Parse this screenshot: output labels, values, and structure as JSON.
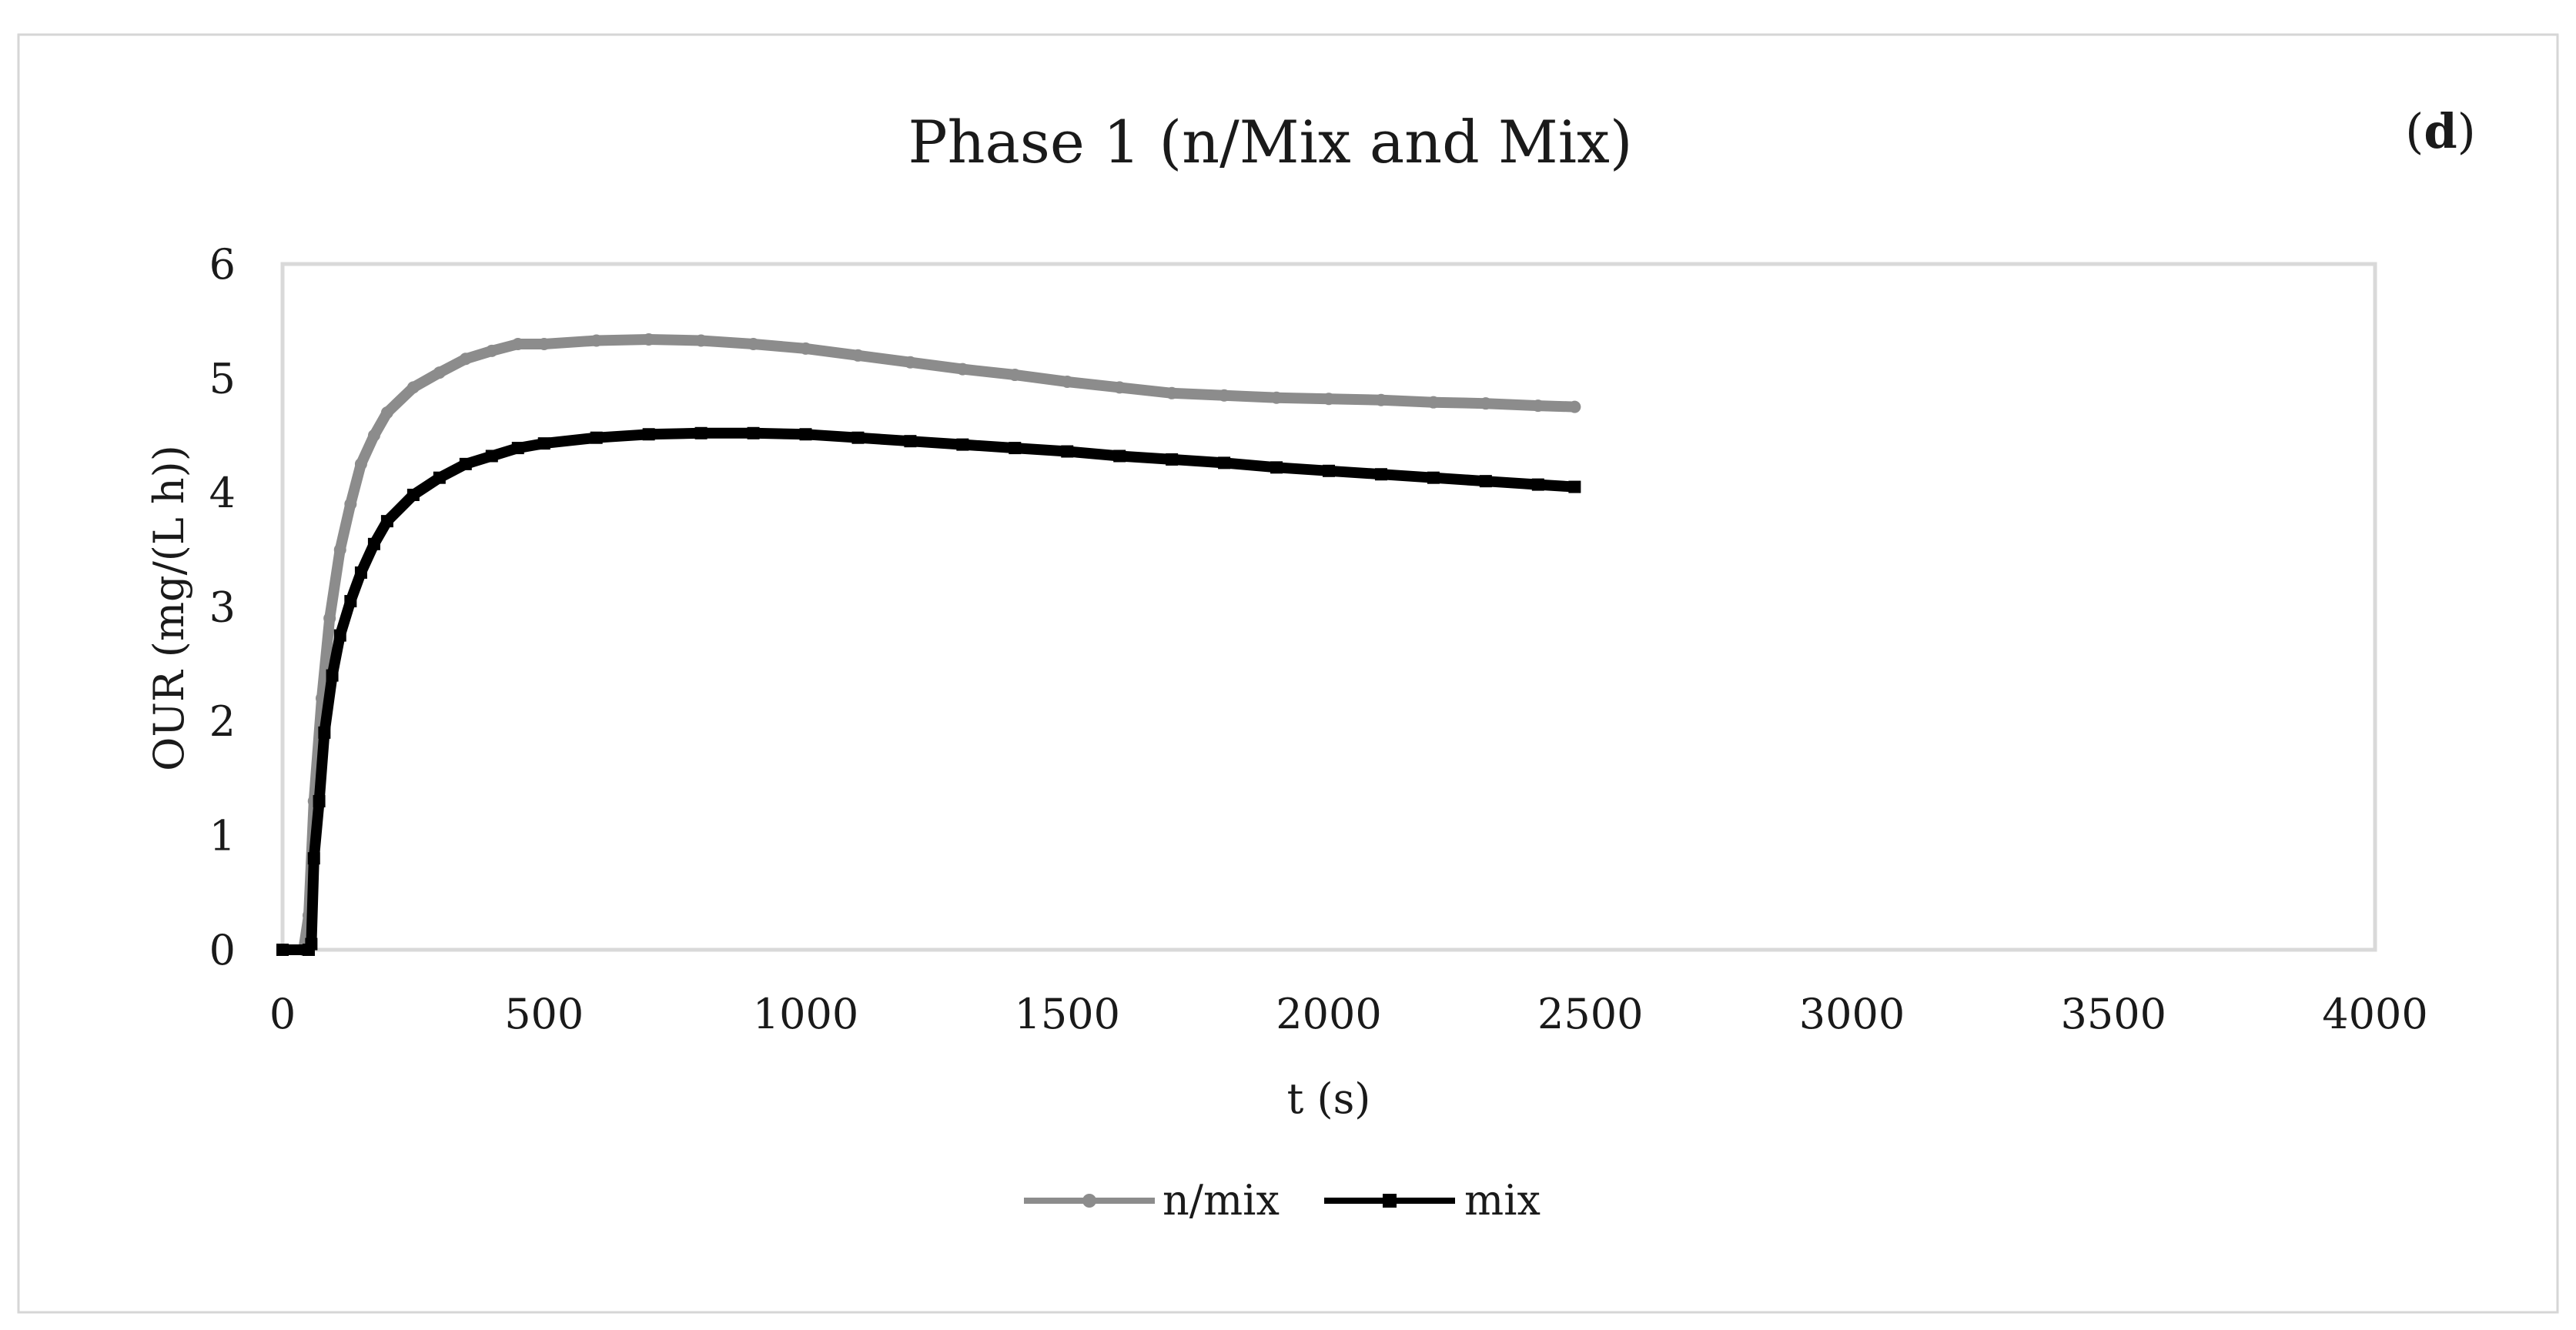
{
  "panel_label": "d",
  "chart_data": {
    "type": "line",
    "title": "Phase 1 (n/Mix and Mix)",
    "xlabel": "t (s)",
    "ylabel": "OUR (mg/(L h))",
    "xlim": [
      0,
      4000
    ],
    "ylim": [
      0,
      6
    ],
    "xticks": [
      "0",
      "500",
      "1000",
      "1500",
      "2000",
      "2500",
      "3000",
      "3500",
      "4000"
    ],
    "yticks": [
      "0",
      "1",
      "2",
      "3",
      "4",
      "5",
      "6"
    ],
    "grid": false,
    "legend_position": "bottom-center",
    "series": [
      {
        "name": "n/mix",
        "color": "#8c8c8c",
        "marker": "circle",
        "x": [
          0,
          40,
          50,
          60,
          75,
          90,
          110,
          130,
          150,
          175,
          200,
          250,
          300,
          350,
          400,
          450,
          500,
          600,
          700,
          800,
          900,
          1000,
          1100,
          1200,
          1300,
          1400,
          1500,
          1600,
          1700,
          1800,
          1900,
          2000,
          2100,
          2200,
          2300,
          2400,
          2470
        ],
        "y": [
          0,
          0,
          0.3,
          1.3,
          2.2,
          2.9,
          3.5,
          3.9,
          4.25,
          4.5,
          4.7,
          4.92,
          5.05,
          5.17,
          5.24,
          5.3,
          5.3,
          5.33,
          5.34,
          5.33,
          5.3,
          5.26,
          5.2,
          5.14,
          5.08,
          5.03,
          4.97,
          4.92,
          4.87,
          4.85,
          4.83,
          4.82,
          4.81,
          4.79,
          4.78,
          4.76,
          4.75
        ]
      },
      {
        "name": "mix",
        "color": "#000000",
        "marker": "square",
        "x": [
          0,
          50,
          55,
          60,
          70,
          80,
          95,
          110,
          130,
          150,
          175,
          200,
          250,
          300,
          350,
          400,
          450,
          500,
          600,
          700,
          800,
          900,
          1000,
          1100,
          1200,
          1300,
          1400,
          1500,
          1600,
          1700,
          1800,
          1900,
          2000,
          2100,
          2200,
          2300,
          2400,
          2470
        ],
        "y": [
          0,
          0,
          0.05,
          0.8,
          1.3,
          1.9,
          2.4,
          2.75,
          3.05,
          3.3,
          3.55,
          3.75,
          3.98,
          4.13,
          4.25,
          4.32,
          4.39,
          4.43,
          4.48,
          4.51,
          4.52,
          4.52,
          4.51,
          4.48,
          4.45,
          4.42,
          4.39,
          4.36,
          4.32,
          4.29,
          4.26,
          4.22,
          4.19,
          4.16,
          4.13,
          4.1,
          4.07,
          4.05
        ]
      }
    ]
  }
}
